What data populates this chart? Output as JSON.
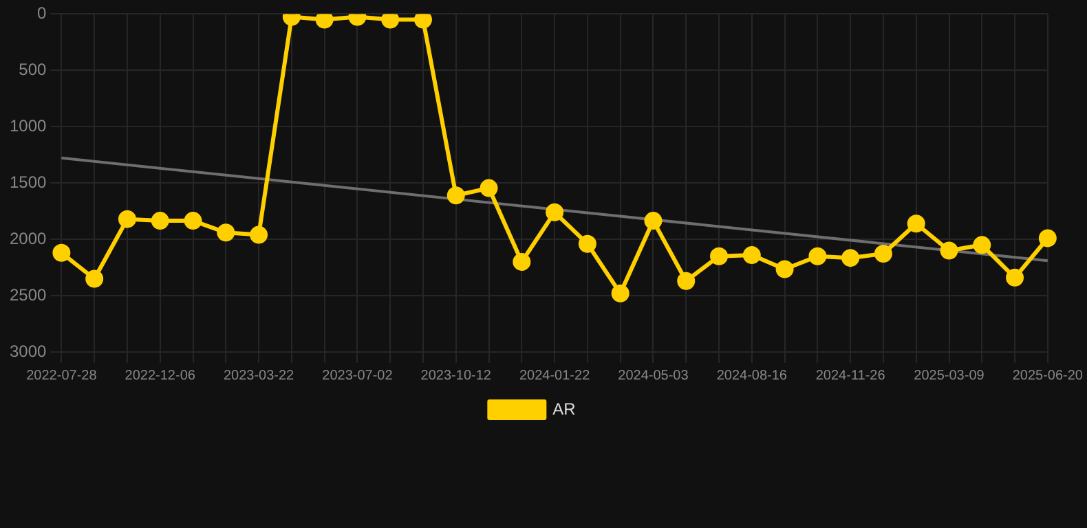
{
  "chart_data": {
    "type": "line",
    "categories": [
      "2022-07-28",
      null,
      null,
      "2022-12-06",
      null,
      null,
      "2023-03-22",
      null,
      null,
      "2023-07-02",
      null,
      null,
      "2023-10-12",
      null,
      null,
      "2024-01-22",
      null,
      null,
      "2024-05-03",
      null,
      null,
      "2024-08-16",
      null,
      null,
      "2024-11-26",
      null,
      null,
      "2025-03-09",
      null,
      null,
      "2025-06-20"
    ],
    "ylim": [
      3000,
      0
    ],
    "yticks": [
      0,
      500,
      1000,
      1500,
      2000,
      2500,
      3000
    ],
    "grid": true,
    "legend": "bottom",
    "marker": "circle",
    "series": [
      {
        "name": "AR",
        "color": "#ffd000",
        "values": [
          2120,
          2350,
          1820,
          1835,
          1835,
          1940,
          1960,
          25,
          50,
          25,
          50,
          50,
          1610,
          1545,
          2200,
          1760,
          2040,
          2480,
          1835,
          2370,
          2150,
          2140,
          2265,
          2150,
          2165,
          2127,
          1860,
          2100,
          2050,
          2340,
          1990
        ]
      },
      {
        "type": "line",
        "color": "#6e6e6e",
        "marker": "none",
        "values": [
          1278,
          null,
          null,
          null,
          null,
          null,
          null,
          null,
          null,
          null,
          null,
          null,
          null,
          null,
          null,
          null,
          null,
          null,
          null,
          null,
          null,
          null,
          null,
          null,
          null,
          null,
          null,
          null,
          null,
          null,
          2190
        ]
      }
    ]
  }
}
